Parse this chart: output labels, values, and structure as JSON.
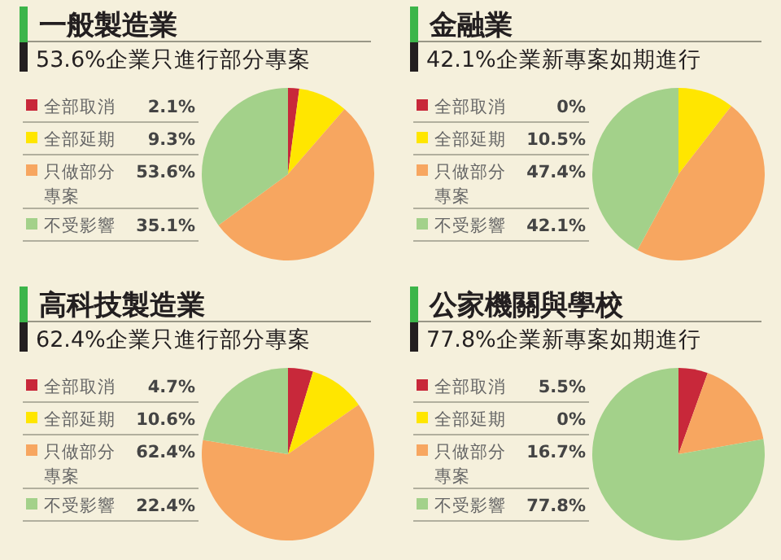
{
  "chart_data": [
    {
      "type": "pie",
      "title": "一般製造業",
      "subtitle": "53.6%企業只進行部分專案",
      "categories": [
        "全部取消",
        "全部延期",
        "只做部分專案",
        "不受影響"
      ],
      "values": [
        2.1,
        9.3,
        53.6,
        35.1
      ],
      "value_labels": [
        "2.1%",
        "9.3%",
        "53.6%",
        "35.1%"
      ],
      "colors": [
        "#c8283a",
        "#ffe600",
        "#f7a660",
        "#a3d18a"
      ],
      "legend": "left"
    },
    {
      "type": "pie",
      "title": "金融業",
      "subtitle": "42.1%企業新專案如期進行",
      "categories": [
        "全部取消",
        "全部延期",
        "只做部分專案",
        "不受影響"
      ],
      "values": [
        0,
        10.5,
        47.4,
        42.1
      ],
      "value_labels": [
        "0%",
        "10.5%",
        "47.4%",
        "42.1%"
      ],
      "colors": [
        "#c8283a",
        "#ffe600",
        "#f7a660",
        "#a3d18a"
      ],
      "legend": "left"
    },
    {
      "type": "pie",
      "title": "高科技製造業",
      "subtitle": "62.4%企業只進行部分專案",
      "categories": [
        "全部取消",
        "全部延期",
        "只做部分專案",
        "不受影響"
      ],
      "values": [
        4.7,
        10.6,
        62.4,
        22.4
      ],
      "value_labels": [
        "4.7%",
        "10.6%",
        "62.4%",
        "22.4%"
      ],
      "colors": [
        "#c8283a",
        "#ffe600",
        "#f7a660",
        "#a3d18a"
      ],
      "legend": "left"
    },
    {
      "type": "pie",
      "title": "公家機關與學校",
      "subtitle": "77.8%企業新專案如期進行",
      "categories": [
        "全部取消",
        "全部延期",
        "只做部分專案",
        "不受影響"
      ],
      "values": [
        5.5,
        0,
        16.7,
        77.8
      ],
      "value_labels": [
        "5.5%",
        "0%",
        "16.7%",
        "77.8%"
      ],
      "colors": [
        "#c8283a",
        "#ffe600",
        "#f7a660",
        "#a3d18a"
      ],
      "legend": "left"
    }
  ]
}
